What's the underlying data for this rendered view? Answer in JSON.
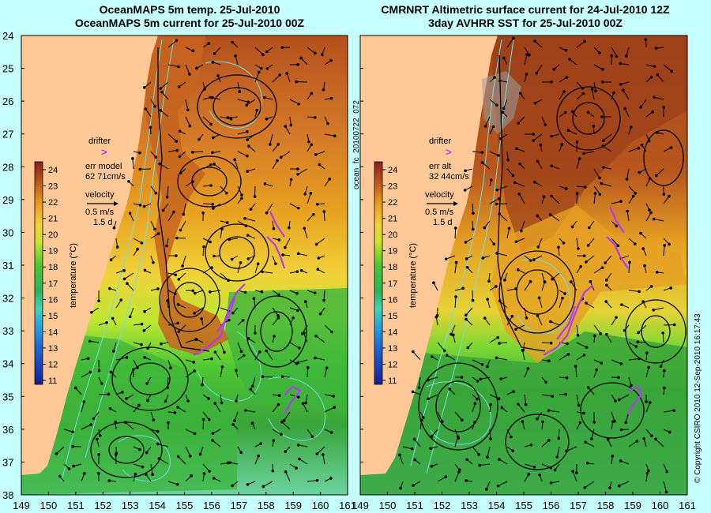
{
  "left_panel": {
    "title_line1": "OceanMAPS 5m temp. 25-Jul-2010",
    "title_line2": "OceanMAPS 5m current for 25-Jul-2010 00Z",
    "drifter_label": "drifter",
    "err_label": "err model",
    "err_value": "62 71cm/s",
    "velocity_label": "velocity",
    "velocity_scale": "0.5 m/s",
    "velocity_time": "1.5 d"
  },
  "right_panel": {
    "title_line1": "CMRNRT Altimetric surface current for 24-Jul-2010 12Z",
    "title_line2": "3day AVHRR SST for 25-Jul-2010 00Z",
    "drifter_label": "drifter",
    "err_label": "err alt",
    "err_value": "32 44cm/s",
    "velocity_label": "velocity",
    "velocity_scale": "0.5 m/s",
    "velocity_time": "1.5 d"
  },
  "colorbar": {
    "axis_label": "temperature (°C)",
    "ticks": [
      "24",
      "23",
      "22",
      "21",
      "20",
      "19",
      "18",
      "17",
      "16",
      "15",
      "14",
      "13",
      "12",
      "11"
    ]
  },
  "axes": {
    "lat_labels": [
      "24",
      "25",
      "26",
      "27",
      "28",
      "29",
      "30",
      "31",
      "32",
      "33",
      "34",
      "35",
      "36",
      "37",
      "38"
    ],
    "lon_labels": [
      "149",
      "150",
      "151",
      "152",
      "153",
      "154",
      "155",
      "156",
      "157",
      "158",
      "159",
      "160",
      "161"
    ]
  },
  "side_label": "ocean_fc_20100722_072",
  "copyright": "© Copyright CSIRO 2010  12-Sep-2010 16:17:43",
  "colors": {
    "background": "#c6ffff",
    "land": "#ffc896",
    "contour": "#6fe0e0",
    "drifter": "#b43cf0",
    "arrow": "#000000"
  }
}
